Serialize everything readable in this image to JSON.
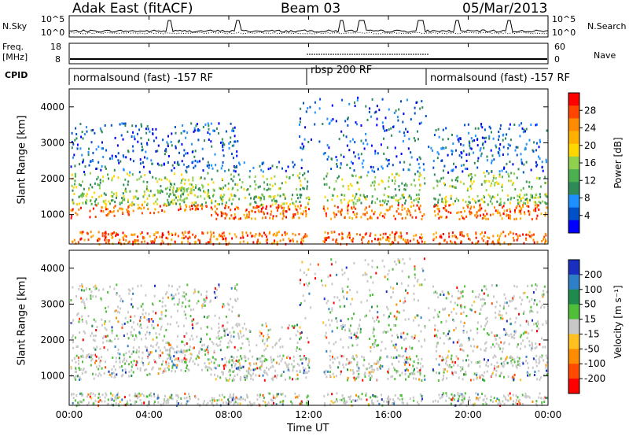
{
  "header": {
    "station": "Adak East (fitACF)",
    "beam": "Beam 03",
    "date": "05/Mar/2013"
  },
  "panels": {
    "nsky": {
      "label": "N.Sky",
      "right_label": "N.Search",
      "left_ticks": [
        "10^5",
        "10^0"
      ],
      "right_ticks": [
        "10^5",
        "10^0"
      ]
    },
    "freq": {
      "label_top": "Freq.",
      "label_unit": "[MHz]",
      "right_label": "Nave",
      "left_ticks": [
        "18",
        "8"
      ],
      "right_ticks": [
        "60",
        "0"
      ]
    },
    "cpid": {
      "label": "CPID",
      "segments": [
        "normalsound (fast) -157 RF",
        "rbsp 200 RF",
        "normalsound (fast) -157 RF"
      ]
    }
  },
  "chart_data": [
    {
      "type": "heatmap",
      "title": "",
      "xlabel": "",
      "ylabel": "Slant Range [km]",
      "colorbar_label": "Power [dB]",
      "colorbar_ticks": [
        "28",
        "24",
        "20",
        "16",
        "12",
        "8",
        "4"
      ],
      "colorbar_colors": [
        "#ff0000",
        "#ff4500",
        "#ff8c00",
        "#ffb000",
        "#ffd700",
        "#8fd14f",
        "#4caf50",
        "#2e8b57",
        "#1e90ff",
        "#0050c8",
        "#0000ff"
      ],
      "y_ticks": [
        "4000",
        "3000",
        "2000",
        "1000"
      ],
      "ylim": [
        180,
        4500
      ],
      "x_ticks": [
        "00:00",
        "04:00",
        "08:00",
        "12:00",
        "16:00",
        "20:00",
        "00:00"
      ]
    },
    {
      "type": "heatmap",
      "title": "",
      "xlabel": "Time UT",
      "ylabel": "Slant Range [km]",
      "colorbar_label": "Velocity [m s⁻¹]",
      "colorbar_ticks": [
        "200",
        "100",
        "50",
        "15",
        "-15",
        "-50",
        "-100",
        "-200"
      ],
      "colorbar_colors": [
        "#1a2fbf",
        "#2f7fc8",
        "#1f8a4c",
        "#4fbf3a",
        "#c8c8c8",
        "#ffc020",
        "#ff8c00",
        "#ff4a00",
        "#ff0000"
      ],
      "y_ticks": [
        "4000",
        "3000",
        "2000",
        "1000"
      ],
      "ylim": [
        180,
        4500
      ],
      "x_ticks": [
        "00:00",
        "04:00",
        "08:00",
        "12:00",
        "16:00",
        "20:00",
        "00:00"
      ]
    }
  ]
}
